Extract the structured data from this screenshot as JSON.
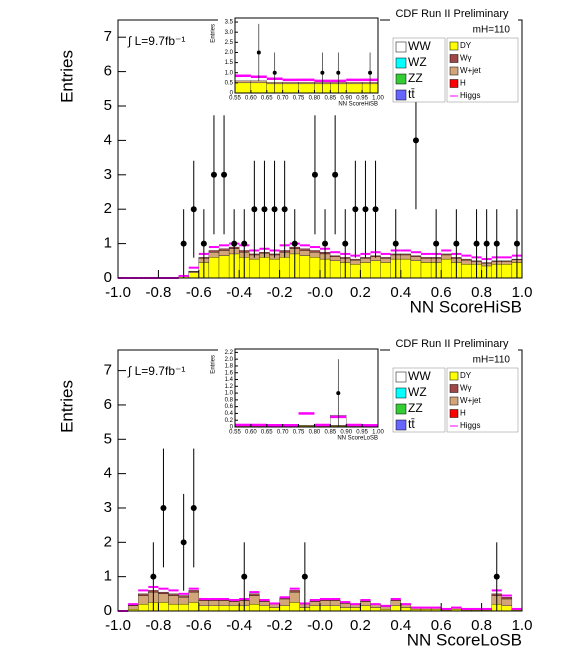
{
  "chart_data": [
    {
      "type": "histogram",
      "title": "CDF Run II Preliminary",
      "luminosity": "∫ L=9.7fb⁻¹",
      "mass_label": "mH=110",
      "xlabel": "NN ScoreHiSB",
      "ylabel": "Entries",
      "bins": [
        -1.0,
        -0.95,
        -0.9,
        -0.85,
        -0.8,
        -0.75,
        -0.7,
        -0.65,
        -0.6,
        -0.55,
        -0.5,
        -0.45,
        -0.4,
        -0.35,
        -0.3,
        -0.25,
        -0.2,
        -0.15,
        -0.1,
        -0.05,
        0.0,
        0.05,
        0.1,
        0.15,
        0.2,
        0.25,
        0.3,
        0.35,
        0.4,
        0.45,
        0.5,
        0.55,
        0.6,
        0.65,
        0.7,
        0.75,
        0.8,
        0.85,
        0.9,
        0.95,
        1.0
      ],
      "series": [
        {
          "name": "DY",
          "color": "#ffff00",
          "values": [
            0,
            0,
            0,
            0,
            0,
            0,
            0.05,
            0.15,
            0.45,
            0.6,
            0.65,
            0.7,
            0.6,
            0.55,
            0.6,
            0.55,
            0.6,
            0.7,
            0.65,
            0.6,
            0.55,
            0.5,
            0.45,
            0.4,
            0.45,
            0.5,
            0.45,
            0.55,
            0.55,
            0.5,
            0.45,
            0.45,
            0.55,
            0.45,
            0.4,
            0.4,
            0.35,
            0.4,
            0.4,
            0.45
          ]
        },
        {
          "name": "W+jet",
          "color": "#d2a679",
          "values": [
            0,
            0,
            0,
            0,
            0,
            0,
            0,
            0.04,
            0.12,
            0.15,
            0.15,
            0.15,
            0.15,
            0.12,
            0.12,
            0.12,
            0.15,
            0.15,
            0.15,
            0.15,
            0.15,
            0.12,
            0.12,
            0.12,
            0.12,
            0.12,
            0.12,
            0.12,
            0.12,
            0.12,
            0.12,
            0.12,
            0.12,
            0.12,
            0.12,
            0.08,
            0.08,
            0.08,
            0.08,
            0.08
          ]
        },
        {
          "name": "Wγ",
          "color": "#a04848",
          "values": [
            0,
            0,
            0,
            0,
            0,
            0,
            0,
            0.01,
            0.03,
            0.05,
            0.05,
            0.05,
            0.05,
            0.03,
            0.03,
            0.03,
            0.05,
            0.05,
            0.05,
            0.05,
            0.05,
            0.03,
            0.03,
            0.03,
            0.03,
            0.03,
            0.03,
            0.03,
            0.03,
            0.03,
            0.03,
            0.03,
            0.03,
            0.03,
            0.03,
            0.02,
            0.02,
            0.02,
            0.02,
            0.02
          ]
        },
        {
          "name": "Higgs",
          "color": "#ff00ff",
          "line": true,
          "values": [
            0,
            0,
            0,
            0,
            0,
            0,
            0.06,
            0.3,
            0.7,
            0.9,
            0.95,
            1.0,
            0.95,
            0.8,
            0.85,
            0.8,
            0.95,
            1.0,
            0.95,
            0.9,
            0.85,
            0.75,
            0.7,
            0.65,
            0.7,
            0.75,
            0.7,
            0.8,
            0.8,
            0.75,
            0.7,
            0.7,
            0.8,
            0.7,
            0.65,
            0.6,
            0.55,
            0.6,
            0.6,
            0.65
          ]
        }
      ],
      "legend": [
        {
          "name": "WW",
          "color": "#ffffff"
        },
        {
          "name": "WZ",
          "color": "#00ffff"
        },
        {
          "name": "ZZ",
          "color": "#33cc33"
        },
        {
          "name": "tt̄",
          "color": "#6666ff"
        },
        {
          "name": "DY",
          "color": "#ffff00"
        },
        {
          "name": "Wγ",
          "color": "#a04848"
        },
        {
          "name": "W+jet",
          "color": "#d2a679"
        },
        {
          "name": "H",
          "color": "#ff0000"
        },
        {
          "name": "Higgs",
          "color": "#ff00ff",
          "line": true
        }
      ],
      "data_x": [
        -0.675,
        -0.625,
        -0.575,
        -0.525,
        -0.475,
        -0.425,
        -0.375,
        -0.325,
        -0.275,
        -0.225,
        -0.175,
        -0.125,
        -0.025,
        0.025,
        0.075,
        0.125,
        0.175,
        0.225,
        0.275,
        0.375,
        0.475,
        0.575,
        0.675,
        0.775,
        0.825,
        0.875,
        0.975
      ],
      "data_y": [
        1,
        2,
        1,
        3,
        3,
        1,
        1,
        2,
        2,
        2,
        2,
        1,
        3,
        1,
        3,
        1,
        2,
        2,
        2,
        1,
        4,
        1,
        1,
        1,
        1,
        1,
        1
      ],
      "data_err": [
        1,
        1.41,
        1,
        1.73,
        1.73,
        1,
        1,
        1.41,
        1.41,
        1.41,
        1.41,
        1,
        1.73,
        1,
        1.73,
        1,
        1.41,
        1.41,
        1.41,
        1,
        2,
        1,
        1,
        1,
        1,
        1,
        1
      ],
      "xlim": [
        -1,
        1
      ],
      "ylim": [
        0,
        7.5
      ],
      "xticks": [
        {
          "value": -1,
          "label": "-1.0"
        },
        -0.8,
        -0.6,
        -0.4,
        -0.2,
        {
          "value": 0,
          "label": "-0.0"
        },
        0.2,
        0.4,
        0.6,
        0.8,
        {
          "value": 1,
          "label": "1.0"
        }
      ],
      "yticks": [
        0,
        1,
        2,
        3,
        4,
        5,
        6,
        7
      ]
    },
    {
      "type": "histogram",
      "xlabel": "NN ScoreHiSB",
      "ylabel": "Entries",
      "bins": [
        0.55,
        0.6,
        0.65,
        0.7,
        0.75,
        0.8,
        0.85,
        0.9,
        0.95,
        1.0
      ],
      "series": [
        {
          "name": "DY",
          "color": "#ffff00",
          "values": [
            0.5,
            0.5,
            0.45,
            0.45,
            0.45,
            0.45,
            0.45,
            0.45,
            0.45
          ]
        },
        {
          "name": "W+jet",
          "color": "#d2a679",
          "values": [
            0.1,
            0.1,
            0.08,
            0.08,
            0.08,
            0.08,
            0.08,
            0.08,
            0.08
          ]
        },
        {
          "name": "Higgs",
          "color": "#ff00ff",
          "line": true,
          "values": [
            0.85,
            0.8,
            0.7,
            0.65,
            0.65,
            0.6,
            0.6,
            0.65,
            0.65
          ]
        }
      ],
      "data_x": [
        0.625,
        0.675,
        0.825,
        0.875,
        0.975
      ],
      "data_y": [
        2,
        1,
        1,
        1,
        1
      ],
      "data_err": [
        1.41,
        1,
        1,
        1,
        1
      ],
      "xlim": [
        0.55,
        1.0
      ],
      "ylim": [
        0,
        3.7
      ],
      "xticks": [
        0.55,
        {
          "value": 0.6,
          "label": "0.60"
        },
        0.65,
        {
          "value": 0.7,
          "label": "0.70"
        },
        0.75,
        {
          "value": 0.8,
          "label": "0.80"
        },
        0.85,
        {
          "value": 0.9,
          "label": "0.90"
        },
        0.95,
        {
          "value": 1,
          "label": "1.00"
        }
      ],
      "yticks": [
        0,
        0.5,
        {
          "value": 1,
          "label": "1.0"
        },
        1.5,
        {
          "value": 2,
          "label": "2.0"
        },
        2.5,
        {
          "value": 3,
          "label": "3.0"
        },
        3.5
      ]
    },
    {
      "type": "histogram",
      "title": "CDF Run II Preliminary",
      "luminosity": "∫ L=9.7fb⁻¹",
      "mass_label": "mH=110",
      "xlabel": "NN ScoreLoSB",
      "ylabel": "Entries",
      "bins": [
        -1.0,
        -0.95,
        -0.9,
        -0.85,
        -0.8,
        -0.75,
        -0.7,
        -0.65,
        -0.6,
        -0.55,
        -0.5,
        -0.45,
        -0.4,
        -0.35,
        -0.3,
        -0.25,
        -0.2,
        -0.15,
        -0.1,
        -0.05,
        0.0,
        0.05,
        0.1,
        0.15,
        0.2,
        0.25,
        0.3,
        0.35,
        0.4,
        0.45,
        0.5,
        0.55,
        0.6,
        0.65,
        0.7,
        0.75,
        0.8,
        0.85,
        0.9,
        0.95,
        1.0
      ],
      "series": [
        {
          "name": "DY",
          "color": "#ffff00",
          "values": [
            0,
            0.05,
            0.2,
            0.25,
            0.25,
            0.2,
            0.2,
            0.25,
            0.15,
            0.15,
            0.15,
            0.15,
            0.15,
            0.2,
            0.15,
            0.1,
            0.15,
            0.25,
            0.1,
            0.15,
            0.15,
            0.15,
            0.1,
            0.1,
            0.15,
            0.1,
            0.05,
            0.15,
            0.1,
            0.05,
            0.05,
            0.05,
            0.03,
            0.05,
            0.03,
            0.03,
            0.03,
            0.2,
            0.15,
            0.03
          ]
        },
        {
          "name": "W+jet",
          "color": "#d2a679",
          "values": [
            0,
            0.1,
            0.25,
            0.3,
            0.25,
            0.25,
            0.2,
            0.3,
            0.15,
            0.15,
            0.15,
            0.12,
            0.15,
            0.25,
            0.12,
            0.1,
            0.2,
            0.3,
            0.1,
            0.12,
            0.15,
            0.15,
            0.12,
            0.08,
            0.12,
            0.08,
            0.08,
            0.15,
            0.08,
            0.04,
            0.04,
            0.04,
            0.02,
            0.04,
            0.02,
            0.02,
            0.02,
            0.25,
            0.2,
            0.02
          ]
        },
        {
          "name": "Wγ",
          "color": "#a04848",
          "values": [
            0,
            0.02,
            0.05,
            0.05,
            0.05,
            0.05,
            0.05,
            0.05,
            0.03,
            0.03,
            0.03,
            0.03,
            0.03,
            0.05,
            0.03,
            0.02,
            0.03,
            0.05,
            0.02,
            0.03,
            0.03,
            0.03,
            0.02,
            0.02,
            0.03,
            0.02,
            0.02,
            0.03,
            0.02,
            0.01,
            0.01,
            0.01,
            0.01,
            0.01,
            0.01,
            0.01,
            0.01,
            0.05,
            0.05,
            0.01
          ]
        },
        {
          "name": "Higgs",
          "color": "#ff00ff",
          "line": true,
          "values": [
            0,
            0.2,
            0.6,
            0.7,
            0.65,
            0.6,
            0.5,
            0.65,
            0.35,
            0.35,
            0.35,
            0.32,
            0.35,
            0.55,
            0.32,
            0.22,
            0.4,
            0.65,
            0.22,
            0.32,
            0.35,
            0.35,
            0.26,
            0.2,
            0.32,
            0.2,
            0.15,
            0.35,
            0.2,
            0.1,
            0.1,
            0.1,
            0.06,
            0.1,
            0.06,
            0.06,
            0.06,
            0.6,
            0.45,
            0.06
          ]
        }
      ],
      "legend": [
        {
          "name": "WW",
          "color": "#ffffff"
        },
        {
          "name": "WZ",
          "color": "#00ffff"
        },
        {
          "name": "ZZ",
          "color": "#33cc33"
        },
        {
          "name": "tt̄",
          "color": "#6666ff"
        },
        {
          "name": "DY",
          "color": "#ffff00"
        },
        {
          "name": "Wγ",
          "color": "#a04848"
        },
        {
          "name": "W+jet",
          "color": "#d2a679"
        },
        {
          "name": "H",
          "color": "#ff0000"
        },
        {
          "name": "Higgs",
          "color": "#ff00ff",
          "line": true
        }
      ],
      "data_x": [
        -0.825,
        -0.775,
        -0.675,
        -0.625,
        -0.375,
        -0.075,
        0.875
      ],
      "data_y": [
        1,
        3,
        2,
        3,
        1,
        1,
        1
      ],
      "data_err": [
        1,
        1.73,
        1.41,
        1.73,
        1,
        1,
        1
      ],
      "xlim": [
        -1,
        1
      ],
      "ylim": [
        0,
        7.6
      ],
      "xticks": [
        {
          "value": -1,
          "label": "-1.0"
        },
        -0.8,
        -0.6,
        -0.4,
        -0.2,
        {
          "value": 0,
          "label": "-0.0"
        },
        0.2,
        0.4,
        0.6,
        0.8,
        {
          "value": 1,
          "label": "1.0"
        }
      ],
      "yticks": [
        0,
        1,
        2,
        3,
        4,
        5,
        6,
        7
      ]
    },
    {
      "type": "histogram",
      "xlabel": "NN ScoreLoSB",
      "ylabel": "Entries",
      "bins": [
        0.55,
        0.6,
        0.65,
        0.7,
        0.75,
        0.8,
        0.85,
        0.9,
        0.95,
        1.0
      ],
      "series": [
        {
          "name": "DY",
          "color": "#ffff00",
          "values": [
            0.03,
            0.03,
            0.03,
            0.03,
            0.03,
            0.03,
            0.03,
            0.03,
            0.03
          ]
        },
        {
          "name": "W+jet",
          "color": "#d2a679",
          "values": [
            0.02,
            0.02,
            0.02,
            0.02,
            0.02,
            0.02,
            0.02,
            0.02,
            0.02
          ]
        },
        {
          "name": "WW",
          "color": "#ffffff",
          "values": [
            0,
            0,
            0,
            0,
            0,
            0,
            0.3,
            0,
            0
          ]
        },
        {
          "name": "Higgs",
          "color": "#ff00ff",
          "line": true,
          "values": [
            0.06,
            0.06,
            0.05,
            0.05,
            0.4,
            0.06,
            0.3,
            0.06,
            0.05
          ]
        }
      ],
      "data_x": [
        0.875
      ],
      "data_y": [
        1
      ],
      "data_err": [
        1
      ],
      "xlim": [
        0.55,
        1.0
      ],
      "ylim": [
        0,
        2.3
      ],
      "xticks": [
        0.55,
        {
          "value": 0.6,
          "label": "0.60"
        },
        0.65,
        {
          "value": 0.7,
          "label": "0.70"
        },
        0.75,
        {
          "value": 0.8,
          "label": "0.80"
        },
        0.85,
        {
          "value": 0.9,
          "label": "0.90"
        },
        0.95,
        {
          "value": 1,
          "label": "1.00"
        }
      ],
      "yticks": [
        0,
        0.2,
        0.4,
        0.6,
        0.8,
        {
          "value": 1,
          "label": "1.0"
        },
        1.2,
        1.4,
        1.6,
        1.8,
        {
          "value": 2,
          "label": "2.0"
        },
        2.2
      ]
    }
  ]
}
